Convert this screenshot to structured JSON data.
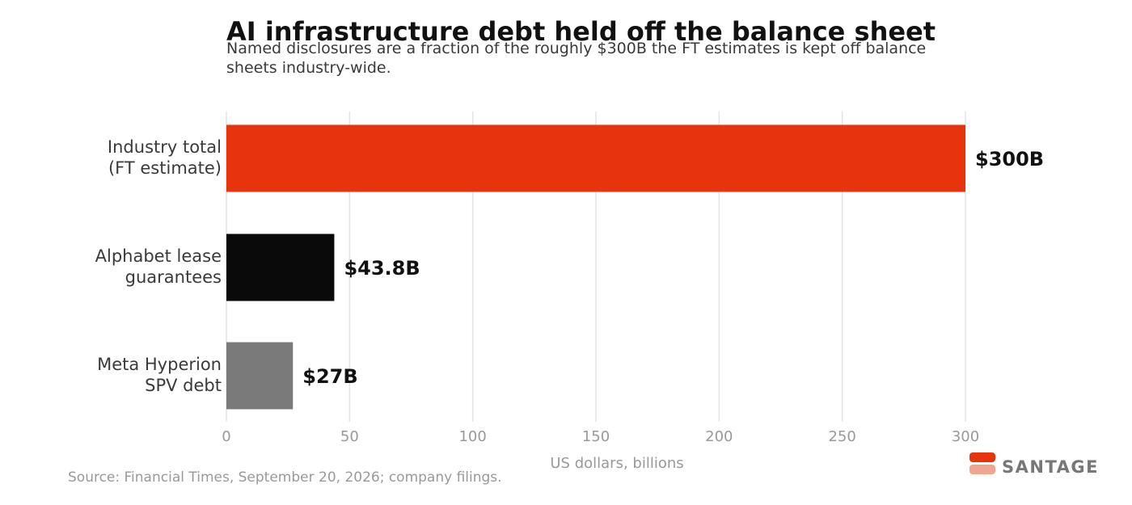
{
  "header": {
    "title": "AI infrastructure debt held off the balance sheet",
    "subtitle": "Named disclosures are a fraction of the roughly $300B the FT estimates is kept off balance sheets industry-wide."
  },
  "footer": {
    "source": "Source: Financial Times, September 20, 2026; company filings."
  },
  "brand": {
    "name": "SANTAGE",
    "colors": [
      "#e8340c",
      "#f2a58e"
    ]
  },
  "chart_data": {
    "type": "bar",
    "orientation": "horizontal",
    "categories": [
      [
        "Industry total",
        "(FT estimate)"
      ],
      [
        "Alphabet lease",
        "guarantees"
      ],
      [
        "Meta Hyperion",
        "SPV debt"
      ]
    ],
    "values": [
      300,
      43.8,
      27
    ],
    "value_labels": [
      "$300B",
      "$43.8B",
      "$27B"
    ],
    "colors": [
      "#e8340c",
      "#0a0a0a",
      "#7a7a7a"
    ],
    "xlabel": "US dollars, billions",
    "xticks": [
      0,
      50,
      100,
      150,
      200,
      250,
      300
    ],
    "xlim": [
      0,
      300
    ],
    "grid": true
  }
}
